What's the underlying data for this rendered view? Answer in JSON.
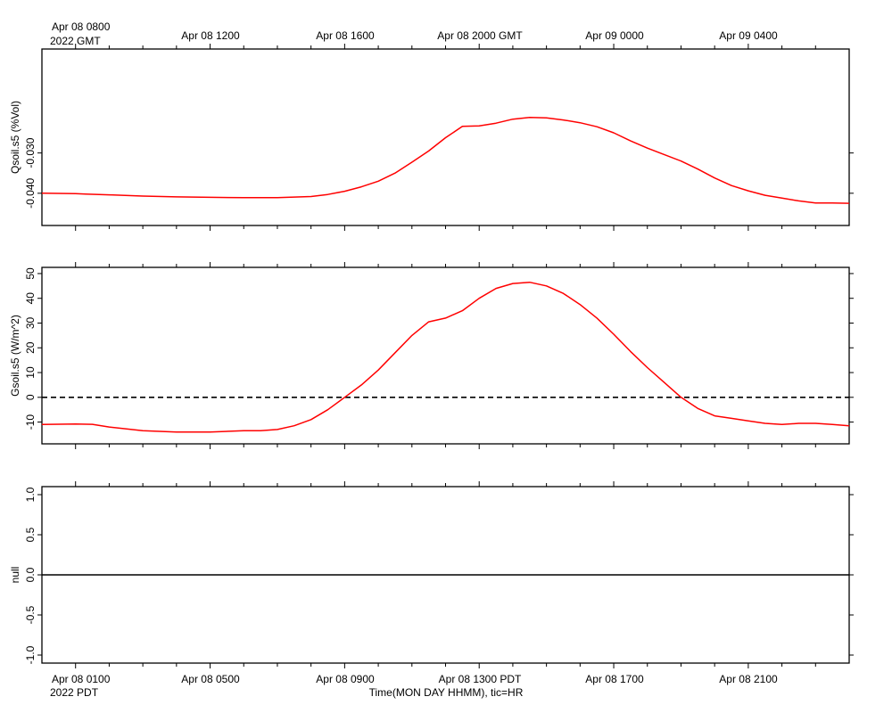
{
  "chart_data": [
    {
      "type": "line",
      "ylabel": "Qsoil.s5 (%Vol)",
      "ylim": [
        -0.048,
        -0.0042
      ],
      "yticks": [
        -0.03,
        -0.04
      ],
      "ytick_labels": [
        "-0.030",
        "-0.040"
      ],
      "line_color": "#ff0000",
      "top_axis": {
        "first_label": [
          "Apr 08 0800",
          "2022 GMT"
        ],
        "labels": [
          "Apr 08 1200",
          "Apr 08 1600",
          "Apr 08 2000 GMT",
          "Apr 09 0000",
          "Apr 09 0400"
        ]
      },
      "series": [
        {
          "x_hours": [
            0,
            1,
            1.3,
            2,
            3,
            4,
            5,
            6,
            7,
            8,
            8.5,
            9,
            9.5,
            10,
            10.5,
            11,
            11.5,
            12,
            12.5,
            13,
            13.5,
            14,
            14.5,
            15,
            15.5,
            16,
            16.5,
            17,
            17.5,
            18,
            18.5,
            19,
            19.5,
            20,
            20.5,
            21,
            21.5,
            22,
            22.5,
            23,
            23.5,
            24
          ],
          "values": [
            -0.04,
            -0.0401,
            -0.0402,
            -0.0404,
            -0.0407,
            -0.0409,
            -0.041,
            -0.0411,
            -0.0411,
            -0.0408,
            -0.0403,
            -0.0395,
            -0.0384,
            -0.037,
            -0.035,
            -0.0323,
            -0.0295,
            -0.0262,
            -0.0234,
            -0.0233,
            -0.0226,
            -0.0216,
            -0.0212,
            -0.0213,
            -0.0218,
            -0.0225,
            -0.0235,
            -0.025,
            -0.027,
            -0.0288,
            -0.0304,
            -0.032,
            -0.034,
            -0.0362,
            -0.0381,
            -0.0394,
            -0.0405,
            -0.0412,
            -0.0419,
            -0.0424,
            -0.0424,
            -0.0425
          ]
        }
      ]
    },
    {
      "type": "line",
      "ylabel": "Gsoil.s5 (W/m^2)",
      "ylim": [
        -18.8,
        52.5
      ],
      "yticks": [
        50,
        40,
        30,
        20,
        10,
        0,
        -10
      ],
      "ytick_labels": [
        "50",
        "40",
        "30",
        "20",
        "10",
        "0",
        "-10"
      ],
      "zero_line": "dashed",
      "line_color": "#ff0000",
      "series": [
        {
          "x_hours": [
            0,
            1,
            1.5,
            2,
            3,
            4,
            5,
            6,
            6.5,
            7,
            7.5,
            8,
            8.5,
            9,
            9.5,
            10,
            10.5,
            11,
            11.5,
            12,
            12.5,
            13,
            13.5,
            14,
            14.5,
            15,
            15.5,
            16,
            16.5,
            17,
            17.5,
            18,
            18.5,
            19,
            19.5,
            20,
            20.5,
            21,
            21.5,
            22,
            22.5,
            23,
            23.5,
            24
          ],
          "values": [
            -11,
            -10.8,
            -10.9,
            -12,
            -13.5,
            -14,
            -14,
            -13.5,
            -13.5,
            -13,
            -11.5,
            -9,
            -5,
            0,
            5,
            11,
            18,
            25,
            30.5,
            32,
            35,
            40,
            44,
            46,
            46.5,
            45,
            42,
            37.5,
            32,
            25.5,
            18.5,
            12,
            6,
            0,
            -4.5,
            -7.5,
            -8.5,
            -9.5,
            -10.5,
            -11,
            -10.5,
            -10.5,
            -11,
            -11.5
          ]
        }
      ]
    },
    {
      "type": "line",
      "ylabel": "null",
      "ylim": [
        -1.1,
        1.1
      ],
      "yticks": [
        1.0,
        0.5,
        0.0,
        -0.5,
        -1.0
      ],
      "ytick_labels": [
        "1.0",
        "0.5",
        "0.0",
        "-0.5",
        "-1.0"
      ],
      "line_color": "#000000",
      "xlabel": "Time(MON DAY HHMM), tic=HR",
      "bottom_axis": {
        "first_label": [
          "Apr 08 0100",
          "2022 PDT"
        ],
        "labels": [
          "Apr 08 0500",
          "Apr 08 0900",
          "Apr 08 1300 PDT",
          "Apr 08 1700",
          "Apr 08 2100"
        ]
      },
      "series": [
        {
          "x_hours": [
            0,
            24
          ],
          "values": [
            0,
            0
          ]
        }
      ]
    }
  ]
}
